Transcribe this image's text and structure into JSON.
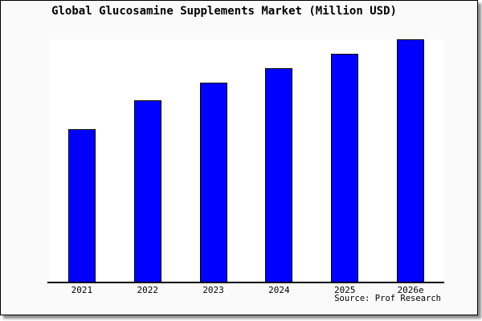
{
  "page": {
    "background": "#fafafa",
    "plot_background": "#ffffff",
    "border_color": "#000000"
  },
  "chart_data": {
    "type": "bar",
    "title": "Global Glucosamine Supplements Market (Million USD)",
    "categories": [
      "2021",
      "2022",
      "2023",
      "2024",
      "2025",
      "2026e"
    ],
    "values": [
      63,
      75,
      82,
      88,
      94,
      100
    ],
    "value_scale": "estimated percent of tallest bar; y-axis not shown in chart",
    "ylim": [
      0,
      100
    ],
    "xlabel": "",
    "ylabel": "",
    "grid": false,
    "legend": "none",
    "y_axis": "hidden",
    "bar_color": "#0000ff",
    "bar_border_color": "#000000",
    "axis_color": "#000000"
  },
  "footer": {
    "source_label": "Source: Prof Research"
  }
}
